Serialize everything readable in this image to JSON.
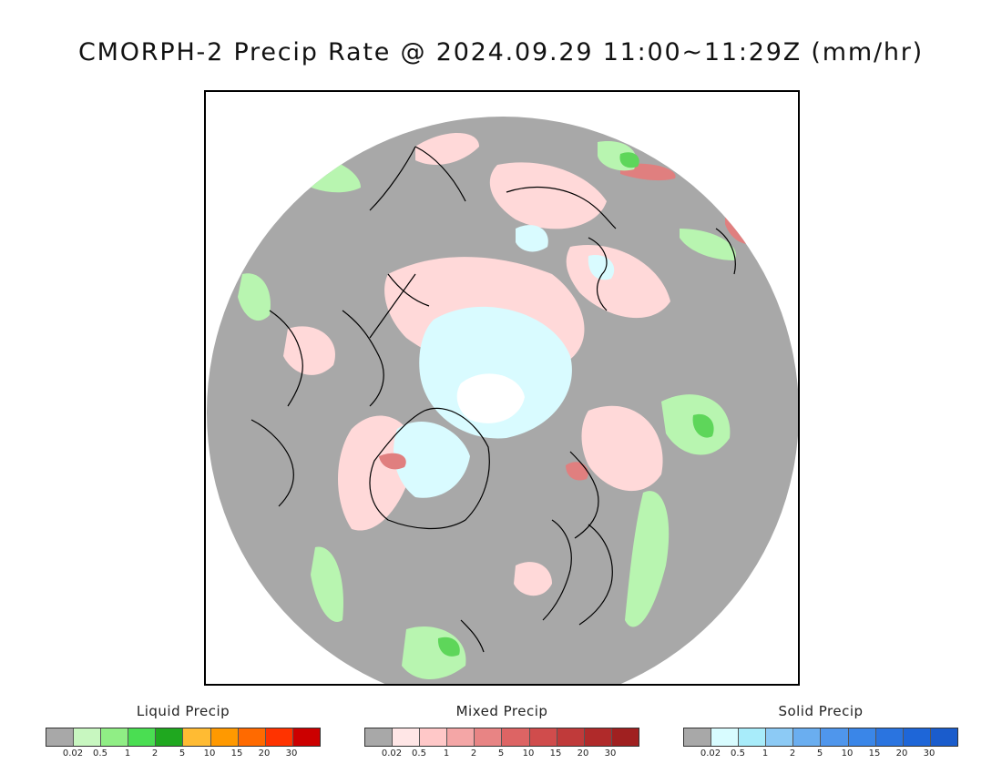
{
  "title": "CMORPH-2 Precip Rate @ 2024.09.29 11:00~11:29Z (mm/hr)",
  "map": {
    "projection": "north polar stereographic",
    "background_color": "#a8a8a8",
    "coastline_color": "#000000",
    "categories": {
      "liquid_light": "#b8f5b0",
      "liquid_medium": "#5ed65a",
      "mixed_light": "#ffd9d9",
      "mixed_medium": "#e07f7f",
      "solid_light": "#d9fbff",
      "solid_peak": "#ffffff"
    }
  },
  "legends": [
    {
      "title": "Liquid Precip",
      "colors": [
        "#a8a8a8",
        "#c8f7c0",
        "#90ee85",
        "#4ade52",
        "#1fa81f",
        "#ffbb33",
        "#ff9900",
        "#ff6a00",
        "#ff3300",
        "#cc0000"
      ],
      "ticks": [
        "0.02",
        "0.5",
        "1",
        "2",
        "5",
        "10",
        "15",
        "20",
        "30"
      ]
    },
    {
      "title": "Mixed Precip",
      "colors": [
        "#a8a8a8",
        "#ffe6e6",
        "#ffc8c8",
        "#f4a6a6",
        "#e88484",
        "#dd6464",
        "#d04c4c",
        "#c03a3a",
        "#b02a2a",
        "#a02020"
      ],
      "ticks": [
        "0.02",
        "0.5",
        "1",
        "2",
        "5",
        "10",
        "15",
        "20",
        "30"
      ]
    },
    {
      "title": "Solid Precip",
      "colors": [
        "#a8a8a8",
        "#d8fcff",
        "#a8ecfa",
        "#8ccaf5",
        "#6aaef0",
        "#4f96ec",
        "#3a86e8",
        "#2a74e0",
        "#1e66d8",
        "#1a5ccc"
      ],
      "ticks": [
        "0.02",
        "0.5",
        "1",
        "2",
        "5",
        "10",
        "15",
        "20",
        "30"
      ]
    }
  ]
}
